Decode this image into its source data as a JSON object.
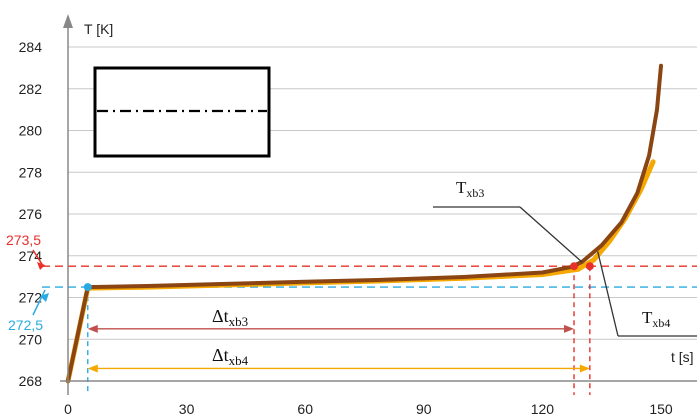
{
  "chart_data": {
    "type": "line",
    "xlabel": "t [s]",
    "ylabel": "T [K]",
    "xlim": [
      0,
      155
    ],
    "ylim": [
      268,
      285
    ],
    "x_ticks": [
      "0",
      "30",
      "60",
      "90",
      "120",
      "150"
    ],
    "y_ticks": [
      "268",
      "270",
      "272",
      "274",
      "276",
      "278",
      "280",
      "282",
      "284"
    ],
    "grid": "horizontal",
    "series": [
      {
        "color": "#8B4513",
        "x": [
          0,
          5,
          20,
          40,
          60,
          80,
          100,
          120,
          127,
          130,
          135,
          140,
          144,
          147,
          149,
          150
        ],
        "y": [
          268.0,
          272.5,
          272.55,
          272.65,
          272.75,
          272.85,
          272.98,
          273.2,
          273.45,
          273.7,
          274.5,
          275.6,
          277.0,
          278.8,
          281.0,
          283.1
        ]
      },
      {
        "color": "#F5A800",
        "x": [
          0,
          5,
          20,
          40,
          60,
          80,
          100,
          120,
          129,
          133,
          137,
          141,
          145,
          148
        ],
        "y": [
          268.0,
          272.45,
          272.5,
          272.6,
          272.7,
          272.8,
          272.92,
          273.1,
          273.35,
          273.8,
          274.7,
          275.8,
          277.2,
          278.5
        ]
      }
    ],
    "reference_lines": [
      {
        "axis": "y",
        "value": 273.5,
        "label": "273,5",
        "color": "#E8302A"
      },
      {
        "axis": "y",
        "value": 272.5,
        "label": "272,5",
        "color": "#29ABE2"
      },
      {
        "axis": "x",
        "value": 5,
        "color": "#29ABE2"
      },
      {
        "axis": "x",
        "value": 128,
        "color": "#E8302A"
      },
      {
        "axis": "x",
        "value": 132,
        "color": "#E8302A"
      }
    ],
    "markers": [
      {
        "x": 5,
        "y": 272.5,
        "color": "#29ABE2"
      },
      {
        "x": 128,
        "y": 273.5,
        "color": "#E8302A"
      },
      {
        "x": 132,
        "y": 273.5,
        "color": "#E8302A"
      }
    ],
    "intervals": [
      {
        "label_main": "Δt",
        "label_sub": "xb3",
        "from": 5,
        "to": 128,
        "y": 270.5,
        "color": "#C0504D"
      },
      {
        "label_main": "Δt",
        "label_sub": "xb4",
        "from": 5,
        "to": 132,
        "y": 268.6,
        "color": "#F5A800"
      }
    ],
    "annotations": [
      {
        "main": "T",
        "sub": "xb3"
      },
      {
        "main": "T",
        "sub": "xb4"
      }
    ]
  }
}
